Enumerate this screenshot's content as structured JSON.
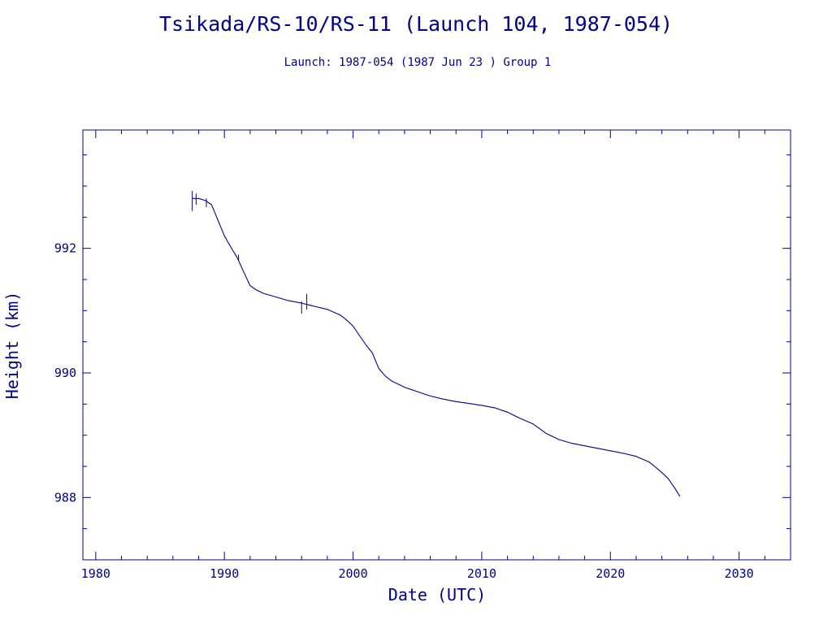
{
  "chart_data": {
    "type": "line",
    "title": "Tsikada/RS-10/RS-11 (Launch 104, 1987-054)",
    "subtitle": "Launch: 1987-054  (1987 Jun 23 )  Group 1",
    "xlabel": "Date (UTC)",
    "ylabel": "Height (km)",
    "xlim": [
      1979,
      2034
    ],
    "ylim": [
      987,
      993.9
    ],
    "x_ticks": [
      "1980",
      "1990",
      "2000",
      "2010",
      "2020",
      "2030"
    ],
    "y_ticks": [
      "988",
      "990",
      "992"
    ],
    "grid": false,
    "color": "#00008b",
    "series": [
      {
        "x": [
          1987.5,
          1988.0,
          1988.5,
          1989.0,
          1989.5,
          1990.0,
          1990.5,
          1991.0,
          1991.5,
          1992.0,
          1992.5,
          1993.0,
          1994.0,
          1995.0,
          1996.0,
          1997.0,
          1998.0,
          1999.0,
          1999.5,
          2000.0,
          2000.5,
          2001.0,
          2001.5,
          2002.0,
          2002.5,
          2003.0,
          2003.5,
          2004.0,
          2005.0,
          2006.0,
          2007.0,
          2008.0,
          2009.0,
          2010.0,
          2011.0,
          2012.0,
          2013.0,
          2014.0,
          2015.0,
          2016.0,
          2017.0,
          2018.0,
          2019.0,
          2020.0,
          2021.0,
          2022.0,
          2023.0,
          2023.5,
          2024.0,
          2024.5,
          2025.0,
          2025.4
        ],
        "y": [
          992.8,
          992.8,
          992.77,
          992.7,
          992.45,
          992.2,
          992.02,
          991.85,
          991.62,
          991.4,
          991.33,
          991.28,
          991.22,
          991.16,
          991.12,
          991.07,
          991.02,
          990.93,
          990.85,
          990.75,
          990.6,
          990.45,
          990.32,
          990.07,
          989.95,
          989.87,
          989.82,
          989.77,
          989.7,
          989.63,
          989.58,
          989.54,
          989.51,
          989.48,
          989.44,
          989.37,
          989.27,
          989.18,
          989.03,
          988.93,
          988.87,
          988.83,
          988.79,
          988.75,
          988.71,
          988.66,
          988.57,
          988.49,
          988.4,
          988.3,
          988.15,
          988.02
        ]
      }
    ],
    "spikes": [
      {
        "x": 1987.5,
        "y_low": 992.6,
        "y_high": 992.92
      },
      {
        "x": 1987.8,
        "y_low": 992.7,
        "y_high": 992.88
      },
      {
        "x": 1988.6,
        "y_low": 992.66,
        "y_high": 992.8
      },
      {
        "x": 1991.1,
        "y_low": 991.8,
        "y_high": 991.9
      },
      {
        "x": 1996.0,
        "y_low": 990.95,
        "y_high": 991.15
      },
      {
        "x": 1996.4,
        "y_low": 991.02,
        "y_high": 991.27
      }
    ]
  }
}
